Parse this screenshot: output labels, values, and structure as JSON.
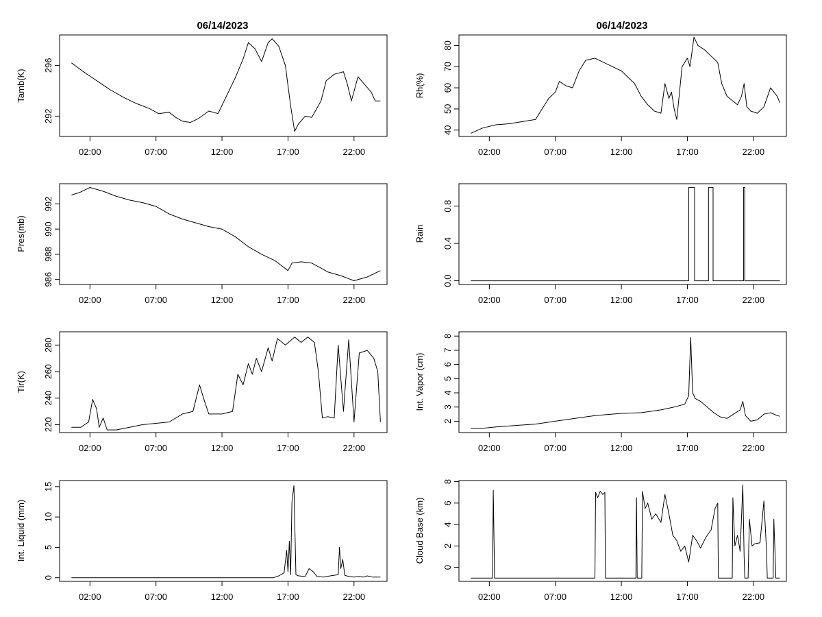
{
  "figure": {
    "left_title": "06/14/2023",
    "right_title": "06/14/2023",
    "line_color": "#000000",
    "background": "#ffffff"
  },
  "chart_data": [
    {
      "id": "tamb",
      "type": "line",
      "ylabel": "Tamb(K)",
      "xlim": [
        -0.3,
        24.5
      ],
      "xticks": [
        2,
        7,
        12,
        17,
        22
      ],
      "xtick_labels": [
        "02:00",
        "07:00",
        "12:00",
        "17:00",
        "22:00"
      ],
      "ylim": [
        290.4,
        298.4
      ],
      "yticks": [
        292,
        296
      ],
      "ytick_labels": [
        "292",
        "296"
      ],
      "x": [
        0.6,
        1.5,
        2.5,
        3.5,
        4.5,
        5.5,
        6.5,
        7.2,
        8.0,
        8.5,
        9.0,
        9.6,
        10.2,
        11.0,
        11.7,
        12.3,
        13.0,
        13.6,
        14.0,
        14.5,
        15.0,
        15.5,
        15.8,
        16.3,
        16.8,
        17.2,
        17.5,
        17.8,
        18.3,
        18.8,
        19.5,
        19.9,
        20.5,
        21.2,
        21.5,
        21.8,
        22.3,
        22.8,
        23.3,
        23.6,
        24.0
      ],
      "y": [
        296.2,
        295.5,
        294.8,
        294.1,
        293.5,
        293.0,
        292.6,
        292.2,
        292.3,
        291.9,
        291.6,
        291.5,
        291.8,
        292.4,
        292.2,
        293.5,
        295.0,
        296.5,
        297.8,
        297.3,
        296.3,
        297.8,
        298.1,
        297.5,
        296.0,
        292.8,
        290.8,
        291.4,
        292.0,
        291.9,
        293.2,
        294.8,
        295.3,
        295.5,
        294.5,
        293.2,
        295.1,
        294.5,
        293.9,
        293.2,
        293.2
      ]
    },
    {
      "id": "pres",
      "type": "line",
      "ylabel": "Pres(mb)",
      "xlim": [
        -0.3,
        24.5
      ],
      "xticks": [
        2,
        7,
        12,
        17,
        22
      ],
      "xtick_labels": [
        "02:00",
        "07:00",
        "12:00",
        "17:00",
        "22:00"
      ],
      "ylim": [
        985.6,
        993.6
      ],
      "yticks": [
        986,
        988,
        990,
        992
      ],
      "ytick_labels": [
        "986",
        "988",
        "990",
        "992"
      ],
      "x": [
        0.6,
        1.2,
        2.0,
        3.0,
        4.0,
        5.0,
        6.0,
        7.0,
        8.0,
        9.0,
        10.0,
        11.0,
        12.0,
        13.0,
        14.0,
        15.0,
        16.0,
        16.5,
        17.0,
        17.3,
        18.0,
        18.8,
        19.5,
        20.0,
        21.0,
        22.0,
        23.0,
        24.0
      ],
      "y": [
        992.7,
        992.9,
        993.3,
        993.0,
        992.6,
        992.3,
        992.1,
        991.8,
        991.2,
        990.8,
        990.5,
        990.2,
        990.0,
        989.4,
        988.6,
        988.0,
        987.5,
        987.1,
        986.7,
        987.3,
        987.4,
        987.3,
        986.9,
        986.6,
        986.3,
        985.9,
        986.2,
        986.7
      ]
    },
    {
      "id": "tir",
      "type": "line",
      "ylabel": "Tir(K)",
      "xlim": [
        -0.3,
        24.5
      ],
      "xticks": [
        2,
        7,
        12,
        17,
        22
      ],
      "xtick_labels": [
        "02:00",
        "07:00",
        "12:00",
        "17:00",
        "22:00"
      ],
      "ylim": [
        214,
        290
      ],
      "yticks": [
        220,
        240,
        260,
        280
      ],
      "ytick_labels": [
        "220",
        "240",
        "260",
        "280"
      ],
      "x": [
        0.6,
        1.3,
        1.9,
        2.2,
        2.5,
        2.7,
        3.0,
        3.3,
        4.0,
        5.0,
        6.0,
        7.0,
        8.0,
        9.0,
        9.8,
        10.3,
        10.6,
        11.0,
        11.5,
        12.0,
        12.8,
        13.2,
        13.6,
        14.0,
        14.3,
        14.6,
        15.0,
        15.5,
        15.8,
        16.2,
        16.8,
        17.5,
        18.0,
        18.5,
        19.0,
        19.3,
        19.6,
        20.0,
        20.5,
        20.8,
        21.2,
        21.6,
        22.0,
        22.4,
        23.0,
        23.5,
        23.8,
        24.0
      ],
      "y": [
        218,
        218,
        222,
        239,
        232,
        218,
        225,
        216,
        216,
        218,
        220,
        221,
        222,
        228,
        230,
        250,
        240,
        228,
        228,
        228,
        230,
        258,
        250,
        266,
        258,
        270,
        260,
        278,
        268,
        285,
        280,
        286,
        282,
        286,
        282,
        260,
        225,
        226,
        225,
        280,
        230,
        284,
        222,
        274,
        276,
        270,
        260,
        222
      ]
    },
    {
      "id": "liquid",
      "type": "line",
      "ylabel": "Int. Liquid (mm)",
      "xlim": [
        -0.3,
        24.5
      ],
      "xticks": [
        2,
        7,
        12,
        17,
        22
      ],
      "xtick_labels": [
        "02:00",
        "07:00",
        "12:00",
        "17:00",
        "22:00"
      ],
      "ylim": [
        -0.6,
        16
      ],
      "yticks": [
        0,
        5,
        10,
        15
      ],
      "ytick_labels": [
        "0",
        "5",
        "10",
        "15"
      ],
      "x": [
        0.6,
        15.9,
        16.3,
        16.7,
        16.9,
        17.0,
        17.1,
        17.2,
        17.3,
        17.45,
        17.6,
        17.8,
        18.3,
        18.6,
        18.9,
        19.2,
        19.7,
        20.2,
        20.8,
        20.9,
        21.0,
        21.15,
        21.3,
        21.6,
        22.0,
        22.4,
        22.7,
        23.0,
        23.4,
        24.0
      ],
      "y": [
        0,
        0,
        0.3,
        0.8,
        4.5,
        1.0,
        6.0,
        0.5,
        12.5,
        15.2,
        0.5,
        0.3,
        0.2,
        1.5,
        1.0,
        0.2,
        0.1,
        0.3,
        0.5,
        5.0,
        1.5,
        3.0,
        0.4,
        0.2,
        0.1,
        0.2,
        0.1,
        0.3,
        0.1,
        0.1
      ]
    },
    {
      "id": "rh",
      "type": "line",
      "ylabel": "Rh(%)",
      "xlim": [
        -0.3,
        24.5
      ],
      "xticks": [
        2,
        7,
        12,
        17,
        22
      ],
      "xtick_labels": [
        "02:00",
        "07:00",
        "12:00",
        "17:00",
        "22:00"
      ],
      "ylim": [
        37,
        85
      ],
      "yticks": [
        40,
        50,
        60,
        70,
        80
      ],
      "ytick_labels": [
        "40",
        "50",
        "60",
        "70",
        "80"
      ],
      "x": [
        0.6,
        1.5,
        2.5,
        3.5,
        4.5,
        5.5,
        6.0,
        6.5,
        7.0,
        7.3,
        7.8,
        8.3,
        8.8,
        9.3,
        10.0,
        11.0,
        12.0,
        13.0,
        13.5,
        14.0,
        14.5,
        15.0,
        15.3,
        15.6,
        15.8,
        16.0,
        16.2,
        16.6,
        17.0,
        17.2,
        17.5,
        17.8,
        18.3,
        18.8,
        19.3,
        19.6,
        20.0,
        20.4,
        20.8,
        21.1,
        21.3,
        21.5,
        21.8,
        22.3,
        22.8,
        23.3,
        23.8,
        24.0
      ],
      "y": [
        38.5,
        41,
        42.5,
        43,
        44,
        45,
        50,
        55,
        58,
        63,
        61,
        60,
        68,
        73,
        74,
        71,
        68,
        62,
        56,
        52,
        49,
        48,
        62,
        55,
        58,
        50,
        45,
        70,
        74,
        70,
        84,
        80,
        78,
        75,
        72,
        62,
        56,
        54,
        52,
        56,
        62,
        51,
        49,
        48,
        51,
        60,
        56,
        53
      ]
    },
    {
      "id": "rain",
      "type": "line",
      "ylabel": "Rain",
      "xlim": [
        -0.3,
        24.5
      ],
      "xticks": [
        2,
        7,
        12,
        17,
        22
      ],
      "xtick_labels": [
        "02:00",
        "07:00",
        "12:00",
        "17:00",
        "22:00"
      ],
      "ylim": [
        -0.04,
        1.04
      ],
      "yticks": [
        0.0,
        0.4,
        0.8
      ],
      "ytick_labels": [
        "0.0",
        "0.4",
        "0.8"
      ],
      "x": [
        0.6,
        17.1,
        17.1,
        17.55,
        17.55,
        18.6,
        18.6,
        18.95,
        18.95,
        21.25,
        21.25,
        21.35,
        21.35,
        24.0
      ],
      "y": [
        0,
        0,
        1,
        1,
        0,
        0,
        1,
        1,
        0,
        0,
        1,
        1,
        0,
        0
      ]
    },
    {
      "id": "vapor",
      "type": "line",
      "ylabel": "Int. Vapor (cm)",
      "xlim": [
        -0.3,
        24.5
      ],
      "xticks": [
        2,
        7,
        12,
        17,
        22
      ],
      "xtick_labels": [
        "02:00",
        "07:00",
        "12:00",
        "17:00",
        "22:00"
      ],
      "ylim": [
        1.2,
        8.3
      ],
      "yticks": [
        2,
        3,
        4,
        5,
        6,
        7,
        8
      ],
      "ytick_labels": [
        "2",
        "3",
        "4",
        "5",
        "6",
        "7",
        "8"
      ],
      "x": [
        0.6,
        1.5,
        2.5,
        4.0,
        5.5,
        7.0,
        8.5,
        10.0,
        12.0,
        13.5,
        15.0,
        16.0,
        16.8,
        17.1,
        17.25,
        17.4,
        17.6,
        18.0,
        18.5,
        19.0,
        19.5,
        20.0,
        20.5,
        21.0,
        21.2,
        21.4,
        21.8,
        22.3,
        22.8,
        23.3,
        23.8,
        24.0
      ],
      "y": [
        1.5,
        1.5,
        1.6,
        1.7,
        1.8,
        2.0,
        2.2,
        2.4,
        2.55,
        2.6,
        2.8,
        3.0,
        3.2,
        3.8,
        7.9,
        4.0,
        3.6,
        3.4,
        3.0,
        2.6,
        2.3,
        2.2,
        2.5,
        2.8,
        3.4,
        2.4,
        2.0,
        2.1,
        2.5,
        2.6,
        2.4,
        2.35
      ]
    },
    {
      "id": "cloud",
      "type": "line",
      "ylabel": "Cloud Base (km)",
      "xlim": [
        -0.3,
        24.5
      ],
      "xticks": [
        2,
        7,
        12,
        17,
        22
      ],
      "xtick_labels": [
        "02:00",
        "07:00",
        "12:00",
        "17:00",
        "22:00"
      ],
      "ylim": [
        -1.3,
        8.1
      ],
      "yticks": [
        0,
        2,
        4,
        6,
        8
      ],
      "ytick_labels": [
        "0",
        "2",
        "4",
        "6",
        "8"
      ],
      "x": [
        0.6,
        2.25,
        2.3,
        2.35,
        2.4,
        10.0,
        10.05,
        10.2,
        10.4,
        10.6,
        10.75,
        10.8,
        13.1,
        13.15,
        13.2,
        13.55,
        13.6,
        13.8,
        14.0,
        14.3,
        14.6,
        15.0,
        15.3,
        15.6,
        15.9,
        16.2,
        16.5,
        16.8,
        17.1,
        17.4,
        17.7,
        18.0,
        18.4,
        18.8,
        19.1,
        19.3,
        19.35,
        20.4,
        20.45,
        20.6,
        20.8,
        21.0,
        21.2,
        21.3,
        21.35,
        21.6,
        21.7,
        21.9,
        22.1,
        22.5,
        22.8,
        23.0,
        23.05,
        23.5,
        23.55,
        23.65,
        23.7,
        24.0
      ],
      "y": [
        -1,
        -1,
        7.2,
        3.0,
        -1,
        -1,
        7.0,
        6.5,
        7.1,
        6.8,
        7.0,
        -1,
        -1,
        6.5,
        -1,
        -1,
        7.1,
        5.5,
        6.0,
        4.5,
        5.0,
        4.2,
        6.8,
        5.0,
        3.0,
        2.5,
        1.5,
        2.0,
        0.5,
        3.0,
        2.5,
        1.8,
        2.8,
        3.5,
        5.5,
        6.0,
        -1,
        -1,
        6.5,
        2.0,
        3.0,
        1.5,
        7.7,
        1.0,
        -1,
        -1,
        4.5,
        2.0,
        2.2,
        2.3,
        6.2,
        1.5,
        -1,
        -1,
        4.5,
        1.0,
        -1,
        -1
      ]
    }
  ]
}
